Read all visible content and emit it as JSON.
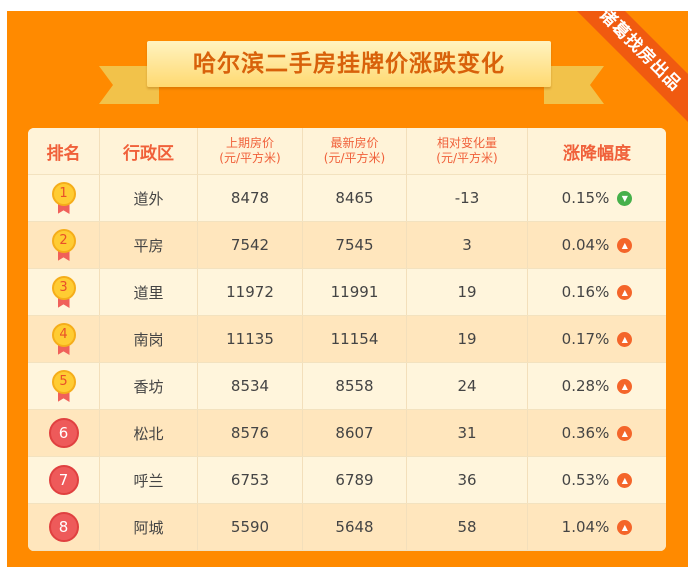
{
  "title": "哈尔滨二手房挂牌价涨跌变化",
  "corner_badge": "诸葛找房出品",
  "colors": {
    "frame": "#ff8a00",
    "up": "#f4652a",
    "down": "#46b04a",
    "header_text": "#f0603a"
  },
  "headers": {
    "rank": "排名",
    "district": "行政区",
    "prev": "上期房价",
    "prev_unit": "(元/平方米)",
    "latest": "最新房价",
    "latest_unit": "(元/平方米)",
    "change": "相对变化量",
    "change_unit": "(元/平方米)",
    "pct": "涨降幅度"
  },
  "rows": [
    {
      "rank": "1",
      "district": "道外",
      "prev": "8478",
      "latest": "8465",
      "change": "-13",
      "pct": "0.15%",
      "trend": "down"
    },
    {
      "rank": "2",
      "district": "平房",
      "prev": "7542",
      "latest": "7545",
      "change": "3",
      "pct": "0.04%",
      "trend": "up"
    },
    {
      "rank": "3",
      "district": "道里",
      "prev": "11972",
      "latest": "11991",
      "change": "19",
      "pct": "0.16%",
      "trend": "up"
    },
    {
      "rank": "4",
      "district": "南岗",
      "prev": "11135",
      "latest": "11154",
      "change": "19",
      "pct": "0.17%",
      "trend": "up"
    },
    {
      "rank": "5",
      "district": "香坊",
      "prev": "8534",
      "latest": "8558",
      "change": "24",
      "pct": "0.28%",
      "trend": "up"
    },
    {
      "rank": "6",
      "district": "松北",
      "prev": "8576",
      "latest": "8607",
      "change": "31",
      "pct": "0.36%",
      "trend": "up"
    },
    {
      "rank": "7",
      "district": "呼兰",
      "prev": "6753",
      "latest": "6789",
      "change": "36",
      "pct": "0.53%",
      "trend": "up"
    },
    {
      "rank": "8",
      "district": "阿城",
      "prev": "5590",
      "latest": "5648",
      "change": "58",
      "pct": "1.04%",
      "trend": "up"
    }
  ]
}
